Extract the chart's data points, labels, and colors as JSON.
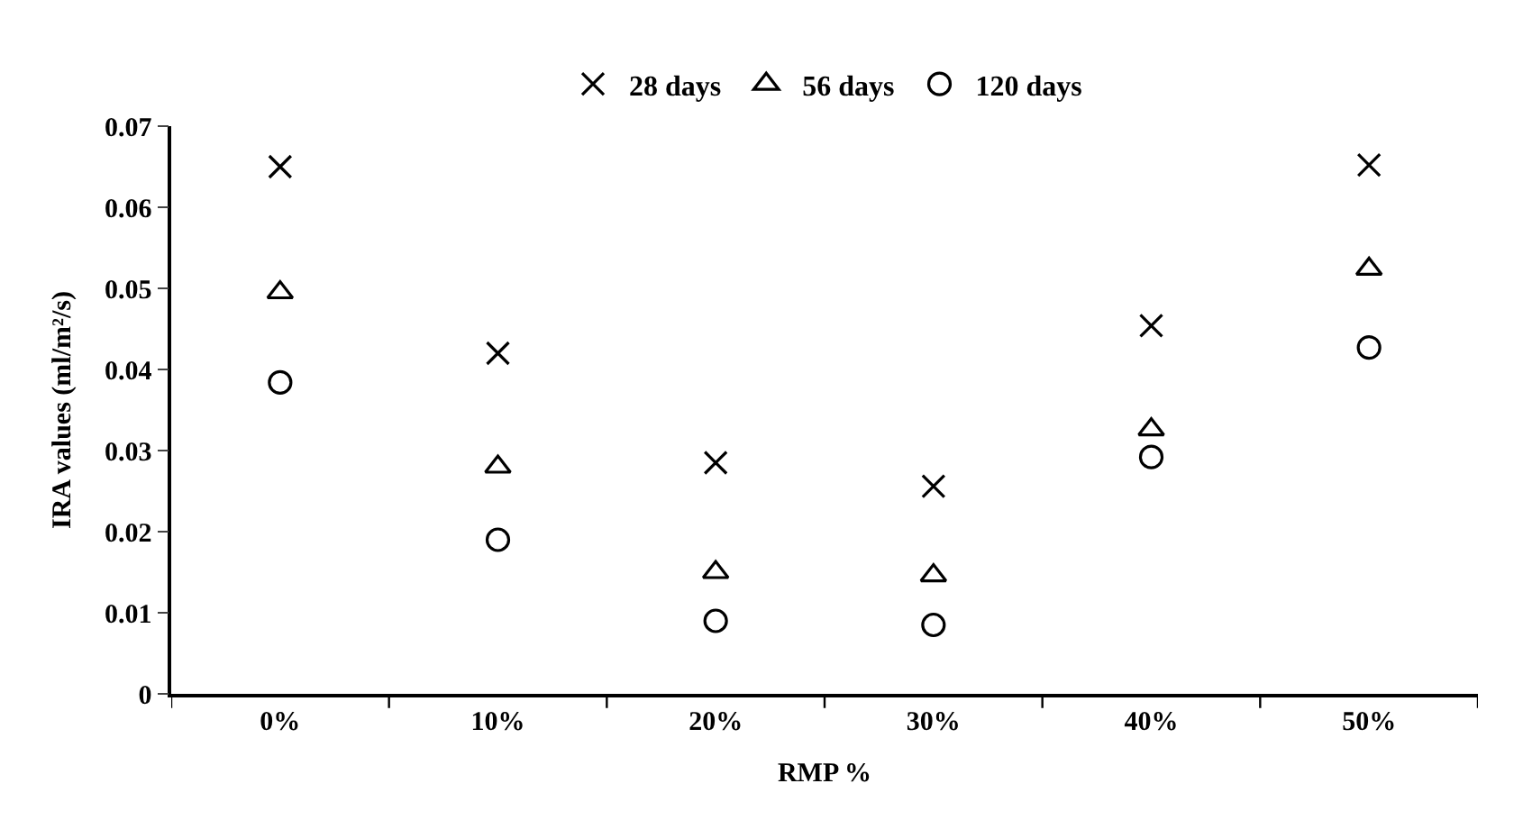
{
  "chart_data": {
    "type": "scatter",
    "xlabel": "RMP %",
    "ylabel": "IRA values (ml/m²/s)",
    "categories": [
      "0%",
      "10%",
      "20%",
      "30%",
      "40%",
      "50%"
    ],
    "series": [
      {
        "name": "28 days",
        "color": "#000000",
        "marker": "cross",
        "values": [
          0.065,
          0.042,
          0.0285,
          0.0256,
          0.0454,
          0.0652
        ]
      },
      {
        "name": "56 days",
        "color": "#000000",
        "marker": "triangle",
        "values": [
          0.0495,
          0.028,
          0.015,
          0.0146,
          0.0326,
          0.0524
        ]
      },
      {
        "name": "120 days",
        "color": "#000000",
        "marker": "circle",
        "values": [
          0.0384,
          0.019,
          0.009,
          0.0085,
          0.0292,
          0.0427
        ]
      }
    ],
    "ylim": [
      0,
      0.07
    ],
    "yticks": [
      0,
      0.01,
      0.02,
      0.03,
      0.04,
      0.05,
      0.06,
      0.07
    ],
    "legend": "top"
  }
}
